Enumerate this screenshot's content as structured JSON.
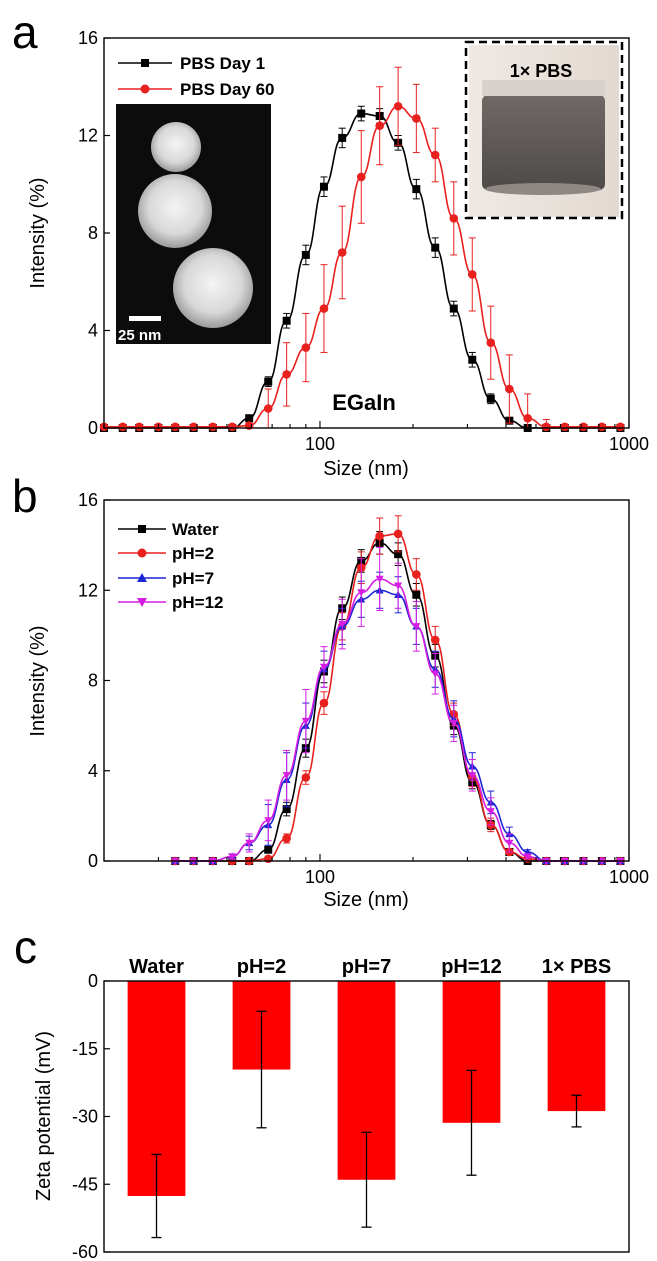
{
  "panels": {
    "a": "a",
    "b": "b",
    "c": "c"
  },
  "chart_data": [
    {
      "id": "a",
      "type": "line",
      "xlabel": "Size (nm)",
      "ylabel": "Intensity (%)",
      "xscale": "log",
      "xlim": [
        20,
        1000
      ],
      "ylim": [
        0,
        16
      ],
      "xticks": [
        {
          "v": 100,
          "label": "100"
        },
        {
          "v": 1000,
          "label": "1000"
        }
      ],
      "yticks": [
        {
          "v": 0,
          "label": "0"
        },
        {
          "v": 4,
          "label": "4"
        },
        {
          "v": 8,
          "label": "8"
        },
        {
          "v": 12,
          "label": "12"
        },
        {
          "v": 16,
          "label": "16"
        }
      ],
      "annotation": "EGaIn",
      "legend_position": "top-left",
      "inset_scale_label": "25 nm",
      "inset_photo_label": "1× PBS",
      "series": [
        {
          "name": "PBS Day 1",
          "color": "#000000",
          "marker": "square",
          "x": [
            20,
            23,
            26,
            30,
            34,
            39,
            45,
            52,
            59,
            68,
            78,
            90,
            103,
            118,
            136,
            156,
            179,
            205,
            236,
            271,
            311,
            357,
            410,
            470,
            540,
            620,
            712,
            817,
            938
          ],
          "y": [
            0,
            0,
            0,
            0,
            0,
            0,
            0,
            0,
            0.4,
            1.9,
            4.4,
            7.1,
            9.9,
            11.9,
            12.9,
            12.8,
            11.7,
            9.8,
            7.4,
            4.9,
            2.8,
            1.2,
            0.3,
            0,
            0,
            0,
            0,
            0,
            0
          ],
          "err": [
            0,
            0,
            0,
            0,
            0,
            0,
            0,
            0,
            0.1,
            0.2,
            0.3,
            0.4,
            0.4,
            0.4,
            0.3,
            0.3,
            0.3,
            0.4,
            0.4,
            0.3,
            0.3,
            0.2,
            0.1,
            0,
            0,
            0,
            0,
            0,
            0
          ]
        },
        {
          "name": "PBS Day 60",
          "color": "#e8201e",
          "marker": "circle",
          "x": [
            20,
            23,
            26,
            30,
            34,
            39,
            45,
            52,
            59,
            68,
            78,
            90,
            103,
            118,
            136,
            156,
            179,
            205,
            236,
            271,
            311,
            357,
            410,
            470,
            540,
            620,
            712,
            817,
            938
          ],
          "y": [
            0.05,
            0.05,
            0.05,
            0.05,
            0.05,
            0.05,
            0.05,
            0.05,
            0.1,
            0.8,
            2.2,
            3.3,
            4.9,
            7.2,
            10.3,
            12.4,
            13.2,
            12.7,
            11.2,
            8.6,
            6.3,
            3.5,
            1.6,
            0.4,
            0.05,
            0.05,
            0.05,
            0.05,
            0.05
          ],
          "err": [
            0,
            0,
            0,
            0,
            0,
            0,
            0,
            0,
            0.1,
            0.8,
            1.3,
            1.4,
            1.8,
            1.9,
            1.9,
            1.6,
            1.6,
            1.4,
            1.1,
            1.5,
            1.5,
            1.5,
            1.4,
            1.0,
            0.3,
            0,
            0,
            0,
            0
          ]
        }
      ]
    },
    {
      "id": "b",
      "type": "line",
      "xlabel": "Size (nm)",
      "ylabel": "Intensity (%)",
      "xscale": "log",
      "xlim": [
        20,
        1000
      ],
      "ylim": [
        0,
        16
      ],
      "xticks": [
        {
          "v": 100,
          "label": "100"
        },
        {
          "v": 1000,
          "label": "1000"
        }
      ],
      "yticks": [
        {
          "v": 0,
          "label": "0"
        },
        {
          "v": 4,
          "label": "4"
        },
        {
          "v": 8,
          "label": "8"
        },
        {
          "v": 12,
          "label": "12"
        },
        {
          "v": 16,
          "label": "16"
        }
      ],
      "legend_position": "top-left",
      "series": [
        {
          "name": "Water",
          "color": "#000000",
          "marker": "square",
          "x": [
            34,
            39,
            45,
            52,
            59,
            68,
            78,
            90,
            103,
            118,
            136,
            156,
            179,
            205,
            236,
            271,
            311,
            357,
            410,
            470,
            540,
            620,
            712,
            817,
            938
          ],
          "y": [
            0,
            0,
            0,
            0,
            0,
            0.5,
            2.3,
            5.0,
            8.4,
            11.2,
            13.3,
            14.1,
            13.6,
            11.8,
            9.1,
            6.0,
            3.5,
            1.6,
            0.4,
            0,
            0,
            0,
            0,
            0,
            0
          ],
          "err": [
            0,
            0,
            0,
            0,
            0,
            0.1,
            0.3,
            0.4,
            0.5,
            0.5,
            0.5,
            0.5,
            0.5,
            0.5,
            0.5,
            0.4,
            0.3,
            0.2,
            0.1,
            0,
            0,
            0,
            0,
            0,
            0
          ]
        },
        {
          "name": "pH=2",
          "color": "#e8201e",
          "marker": "circle",
          "x": [
            34,
            39,
            45,
            52,
            59,
            68,
            78,
            90,
            103,
            118,
            136,
            156,
            179,
            205,
            236,
            271,
            311,
            357,
            410,
            470,
            540,
            620,
            712,
            817,
            938
          ],
          "y": [
            0,
            0,
            0,
            0,
            0,
            0.1,
            1.0,
            3.7,
            7.0,
            10.4,
            13.0,
            14.4,
            14.5,
            12.7,
            9.8,
            6.5,
            3.7,
            1.6,
            0.4,
            0.1,
            0,
            0,
            0,
            0,
            0
          ],
          "err": [
            0,
            0,
            0,
            0,
            0,
            0,
            0.2,
            0.3,
            0.5,
            0.6,
            0.7,
            0.8,
            0.8,
            0.7,
            0.6,
            0.5,
            0.4,
            0.3,
            0.1,
            0,
            0,
            0,
            0,
            0,
            0
          ]
        },
        {
          "name": "pH=7",
          "color": "#1f26d6",
          "marker": "triangle-up",
          "x": [
            34,
            39,
            45,
            52,
            59,
            68,
            78,
            90,
            103,
            118,
            136,
            156,
            179,
            205,
            236,
            271,
            311,
            357,
            410,
            470,
            540,
            620,
            712,
            817,
            938
          ],
          "y": [
            0,
            0,
            0,
            0.2,
            0.8,
            1.6,
            3.6,
            6.0,
            8.5,
            10.4,
            11.6,
            12.0,
            11.8,
            10.4,
            8.5,
            6.3,
            4.2,
            2.6,
            1.2,
            0.4,
            0,
            0,
            0,
            0,
            0
          ],
          "err": [
            0,
            0,
            0,
            0.1,
            0.3,
            0.9,
            1.2,
            1.0,
            0.8,
            0.8,
            0.8,
            0.8,
            0.8,
            0.8,
            0.8,
            0.8,
            0.6,
            0.5,
            0.3,
            0.1,
            0,
            0,
            0,
            0,
            0
          ]
        },
        {
          "name": "pH=12",
          "color": "#d61ee3",
          "marker": "triangle-down",
          "x": [
            34,
            39,
            45,
            52,
            59,
            68,
            78,
            90,
            103,
            118,
            136,
            156,
            179,
            205,
            236,
            271,
            311,
            357,
            410,
            470,
            540,
            620,
            712,
            817,
            938
          ],
          "y": [
            0,
            0,
            0,
            0.2,
            0.8,
            1.8,
            3.8,
            6.2,
            8.6,
            10.5,
            11.9,
            12.5,
            12.2,
            10.4,
            8.3,
            6.1,
            3.8,
            2.2,
            0.8,
            0.2,
            0,
            0,
            0,
            0,
            0
          ],
          "err": [
            0,
            0,
            0,
            0.1,
            0.4,
            0.9,
            1.1,
            1.4,
            0.9,
            1.1,
            1.5,
            1.4,
            1.0,
            1.1,
            0.9,
            0.8,
            0.7,
            0.6,
            0.4,
            0.1,
            0,
            0,
            0,
            0,
            0
          ]
        }
      ]
    },
    {
      "id": "c",
      "type": "bar",
      "ylabel": "Zeta potential (mV)",
      "ylim": [
        -60,
        0
      ],
      "yticks": [
        {
          "v": 0,
          "label": "0"
        },
        {
          "v": -15,
          "label": "-15"
        },
        {
          "v": -30,
          "label": "-30"
        },
        {
          "v": -45,
          "label": "-45"
        },
        {
          "v": -60,
          "label": "-60"
        }
      ],
      "bar_color": "#ff0000",
      "categories": [
        "Water",
        "pH=2",
        "pH=7",
        "pH=12",
        "1× PBS"
      ],
      "values": [
        -47.6,
        -19.6,
        -44.0,
        -31.4,
        -28.8
      ],
      "err": [
        9.2,
        12.9,
        10.5,
        11.6,
        3.5
      ]
    }
  ]
}
